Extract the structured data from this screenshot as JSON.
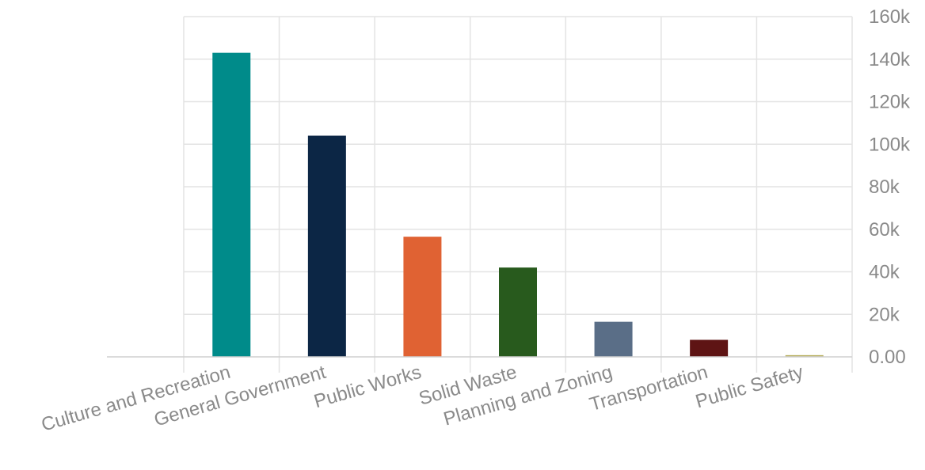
{
  "chart_data": {
    "type": "bar",
    "categories": [
      "Culture and Recreation",
      "General Government",
      "Public Works",
      "Solid Waste",
      "Planning and Zoning",
      "Transportation",
      "Public Safety"
    ],
    "values": [
      143000,
      104000,
      56500,
      42000,
      16500,
      8000,
      800
    ],
    "colors": [
      "#008b8a",
      "#0c2645",
      "#e06233",
      "#285a1d",
      "#5a6e87",
      "#5e1414",
      "#b8b060"
    ],
    "y_ticks": [
      "0.00",
      "20k",
      "40k",
      "60k",
      "80k",
      "100k",
      "120k",
      "140k",
      "160k"
    ],
    "ylim": [
      0,
      160000
    ],
    "y_axis_position": "right",
    "grid": true,
    "title": "",
    "xlabel": "",
    "ylabel": ""
  }
}
